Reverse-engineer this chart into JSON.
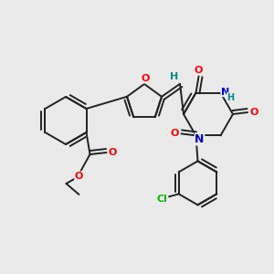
{
  "bg_color": "#eaeaea",
  "bond_color": "#222222",
  "bond_width": 1.4,
  "atom_colors": {
    "O": "#ff0000",
    "N": "#0000cc",
    "Cl": "#00bb00",
    "H_teal": "#008888",
    "C": "#222222"
  }
}
